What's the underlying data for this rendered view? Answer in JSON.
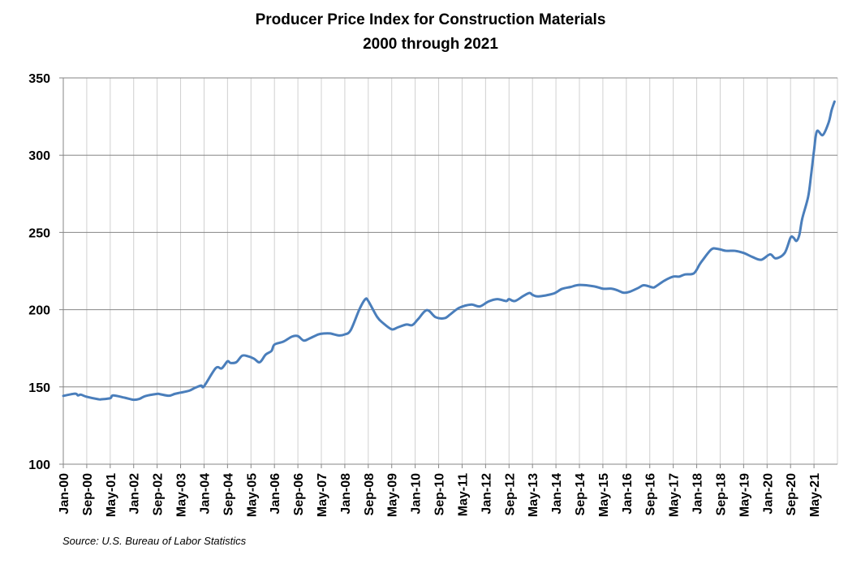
{
  "chart_data": {
    "type": "line",
    "title": "Producer Price Index for Construction Materials",
    "subtitle": "2000 through 2021",
    "xlabel": "",
    "ylabel": "",
    "ylim": [
      100,
      350
    ],
    "yticks": [
      100,
      150,
      200,
      250,
      300,
      350
    ],
    "xlim": [
      "2000-01",
      "2022-01"
    ],
    "xtick_labels": [
      "Jan-00",
      "Sep-00",
      "May-01",
      "Jan-02",
      "Sep-02",
      "May-03",
      "Jan-04",
      "Sep-04",
      "May-05",
      "Jan-06",
      "Sep-06",
      "May-07",
      "Jan-08",
      "Sep-08",
      "May-09",
      "Jan-10",
      "Sep-10",
      "May-11",
      "Jan-12",
      "Sep-12",
      "May-13",
      "Jan-14",
      "Sep-14",
      "May-15",
      "Jan-16",
      "Sep-16",
      "May-17",
      "Jan-18",
      "Sep-18",
      "May-19",
      "Jan-20",
      "Sep-20",
      "May-21"
    ],
    "grid": {
      "horizontal": true,
      "vertical": true
    },
    "legend": "none",
    "line_color": "#4a7ebb",
    "series": [
      {
        "points": [
          [
            "2000-01",
            144.2
          ],
          [
            "2000-05",
            145.6
          ],
          [
            "2000-06",
            144.5
          ],
          [
            "2000-07",
            145.0
          ],
          [
            "2000-09",
            143.6
          ],
          [
            "2001-01",
            142.0
          ],
          [
            "2001-02",
            142.0
          ],
          [
            "2001-05",
            142.7
          ],
          [
            "2001-06",
            144.5
          ],
          [
            "2001-10",
            143.0
          ],
          [
            "2002-01",
            141.7
          ],
          [
            "2002-03",
            142.3
          ],
          [
            "2002-05",
            144.1
          ],
          [
            "2002-09",
            145.5
          ],
          [
            "2002-10",
            145.3
          ],
          [
            "2003-01",
            144.3
          ],
          [
            "2003-03",
            145.5
          ],
          [
            "2003-05",
            146.3
          ],
          [
            "2003-08",
            147.6
          ],
          [
            "2003-10",
            149.5
          ],
          [
            "2003-12",
            150.9
          ],
          [
            "2004-01",
            150.5
          ],
          [
            "2004-05",
            162.2
          ],
          [
            "2004-07",
            162.0
          ],
          [
            "2004-09",
            166.6
          ],
          [
            "2004-10",
            165.5
          ],
          [
            "2004-12",
            166.0
          ],
          [
            "2005-02",
            170.2
          ],
          [
            "2005-04",
            169.8
          ],
          [
            "2005-06",
            168.3
          ],
          [
            "2005-08",
            166.0
          ],
          [
            "2005-10",
            170.9
          ],
          [
            "2005-12",
            173.3
          ],
          [
            "2006-01",
            177.4
          ],
          [
            "2006-04",
            179.3
          ],
          [
            "2006-07",
            182.6
          ],
          [
            "2006-09",
            182.9
          ],
          [
            "2006-11",
            180.0
          ],
          [
            "2007-01",
            181.4
          ],
          [
            "2007-04",
            184.0
          ],
          [
            "2007-06",
            184.6
          ],
          [
            "2007-08",
            184.6
          ],
          [
            "2007-11",
            183.3
          ],
          [
            "2008-01",
            184.0
          ],
          [
            "2008-03",
            186.7
          ],
          [
            "2008-06",
            200.3
          ],
          [
            "2008-08",
            206.8
          ],
          [
            "2008-09",
            205.6
          ],
          [
            "2008-12",
            195.4
          ],
          [
            "2009-02",
            191.4
          ],
          [
            "2009-05",
            187.3
          ],
          [
            "2009-07",
            188.5
          ],
          [
            "2009-10",
            190.4
          ],
          [
            "2009-12",
            190.0
          ],
          [
            "2010-02",
            193.9
          ],
          [
            "2010-05",
            199.7
          ],
          [
            "2010-08",
            195.1
          ],
          [
            "2010-11",
            194.5
          ],
          [
            "2011-01",
            197.0
          ],
          [
            "2011-04",
            201.2
          ],
          [
            "2011-08",
            203.3
          ],
          [
            "2011-11",
            202.1
          ],
          [
            "2012-02",
            205.3
          ],
          [
            "2012-05",
            206.8
          ],
          [
            "2012-08",
            205.6
          ],
          [
            "2012-09",
            206.8
          ],
          [
            "2012-11",
            205.6
          ],
          [
            "2013-02",
            209.0
          ],
          [
            "2013-04",
            210.8
          ],
          [
            "2013-05",
            209.6
          ],
          [
            "2013-07",
            208.6
          ],
          [
            "2013-12",
            210.3
          ],
          [
            "2014-03",
            213.4
          ],
          [
            "2014-06",
            214.7
          ],
          [
            "2014-09",
            216.0
          ],
          [
            "2015-02",
            215.1
          ],
          [
            "2015-05",
            213.6
          ],
          [
            "2015-08",
            213.6
          ],
          [
            "2015-10",
            212.5
          ],
          [
            "2015-12",
            211.0
          ],
          [
            "2016-02",
            211.5
          ],
          [
            "2016-05",
            214.0
          ],
          [
            "2016-07",
            215.8
          ],
          [
            "2016-10",
            214.4
          ],
          [
            "2016-11",
            215.0
          ],
          [
            "2017-02",
            218.8
          ],
          [
            "2017-05",
            221.4
          ],
          [
            "2017-07",
            221.4
          ],
          [
            "2017-09",
            222.8
          ],
          [
            "2017-12",
            223.5
          ],
          [
            "2018-02",
            229.3
          ],
          [
            "2018-03",
            232.0
          ],
          [
            "2018-06",
            239.0
          ],
          [
            "2018-08",
            239.4
          ],
          [
            "2018-11",
            238.1
          ],
          [
            "2019-02",
            238.1
          ],
          [
            "2019-05",
            236.7
          ],
          [
            "2019-08",
            234.1
          ],
          [
            "2019-11",
            232.3
          ],
          [
            "2020-02",
            235.8
          ],
          [
            "2020-04",
            233.2
          ],
          [
            "2020-07",
            236.7
          ],
          [
            "2020-09",
            246.6
          ],
          [
            "2020-10",
            246.6
          ],
          [
            "2020-11",
            244.5
          ],
          [
            "2020-12",
            248.4
          ],
          [
            "2021-01",
            259.0
          ],
          [
            "2021-03",
            273.0
          ],
          [
            "2021-04",
            287.0
          ],
          [
            "2021-05",
            302.9
          ],
          [
            "2021-06",
            315.5
          ],
          [
            "2021-08",
            313.0
          ],
          [
            "2021-10",
            321.2
          ],
          [
            "2021-11",
            329.1
          ],
          [
            "2021-12",
            334.7
          ]
        ]
      }
    ],
    "source": "Source: U.S. Bureau of Labor Statistics"
  }
}
